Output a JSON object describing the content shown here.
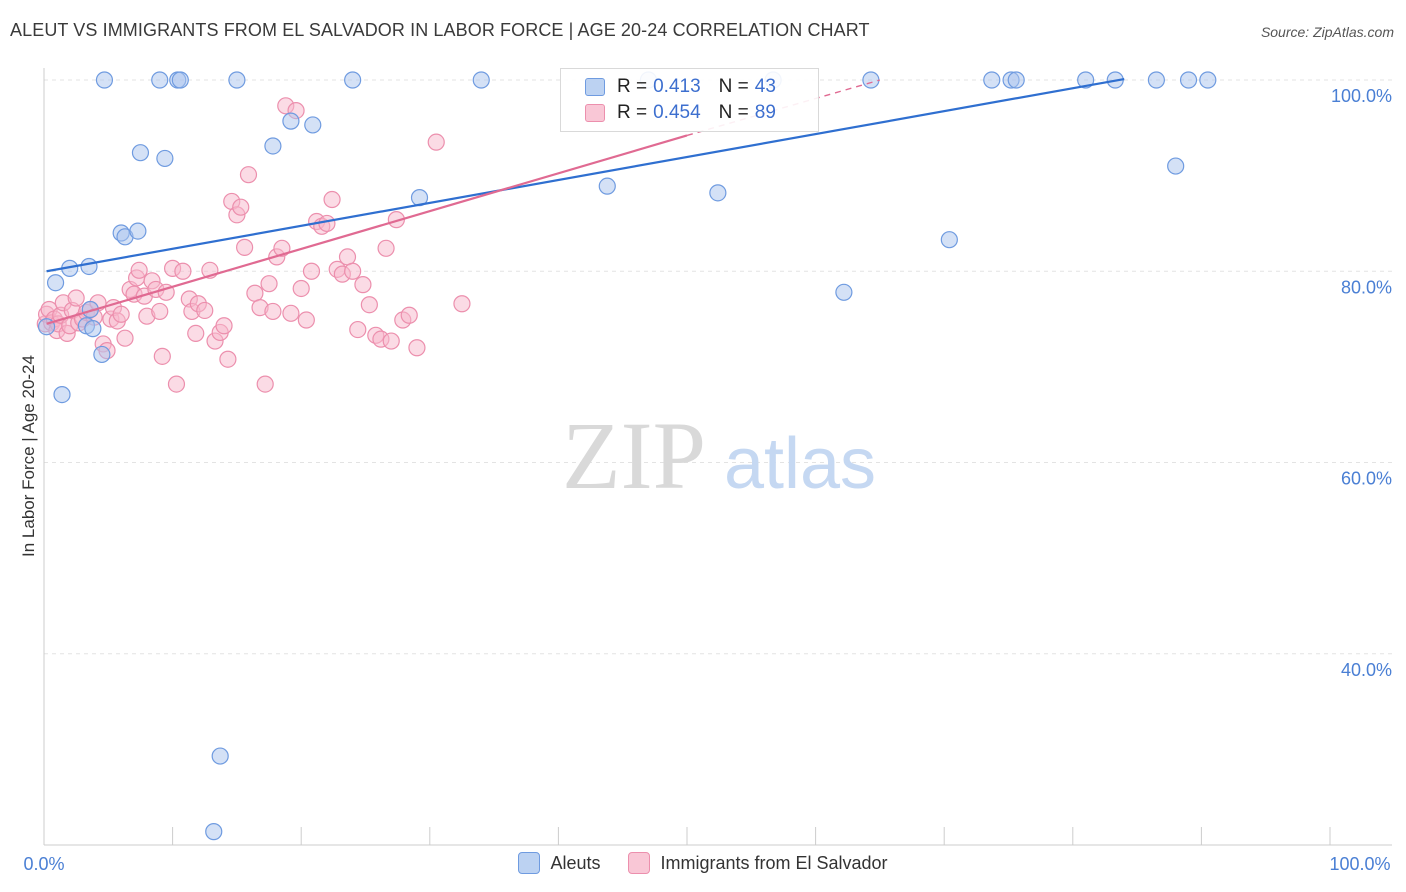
{
  "title": "ALEUT VS IMMIGRANTS FROM EL SALVADOR IN LABOR FORCE | AGE 20-24 CORRELATION CHART",
  "source": "Source: ZipAtlas.com",
  "watermark": {
    "zip": "ZIP",
    "atlas": "atlas"
  },
  "legend": {
    "rows": [
      {
        "r_label": "R = ",
        "r_value": "0.413",
        "n_label": "N = ",
        "n_value": "43"
      },
      {
        "r_label": "R = ",
        "r_value": "0.454",
        "n_label": "N = ",
        "n_value": "89"
      }
    ]
  },
  "colors": {
    "aleuts_fill": "#a9c4ee",
    "aleuts_stroke": "#6f9be0",
    "aleuts_line": "#2f6fd0",
    "salvador_fill": "#f7b8cb",
    "salvador_stroke": "#ec8fad",
    "salvador_line": "#e06a92",
    "tick_text": "#4a7fd4",
    "grid": "#e3e3e3"
  },
  "chart_data": {
    "type": "scatter",
    "xlabel": "",
    "ylabel": "In Labor Force | Age 20-24",
    "xlim": [
      0,
      100
    ],
    "ylim": [
      20,
      100
    ],
    "x_tick_labels": [
      "0.0%",
      "100.0%"
    ],
    "y_ticks": [
      40,
      60,
      80,
      100
    ],
    "y_tick_labels": [
      "40.0%",
      "60.0%",
      "80.0%",
      "100.0%"
    ],
    "grid": true,
    "legend_position": "top-center",
    "series": [
      {
        "name": "Aleuts",
        "r": 0.413,
        "n": 43,
        "trend": [
          [
            0.2,
            80.0
          ],
          [
            84,
            100.1
          ]
        ],
        "points": [
          [
            0.2,
            74.2
          ],
          [
            0.9,
            78.8
          ],
          [
            1.4,
            67.1
          ],
          [
            2.0,
            80.3
          ],
          [
            3.3,
            74.3
          ],
          [
            3.6,
            76.0
          ],
          [
            3.5,
            80.5
          ],
          [
            3.8,
            74.0
          ],
          [
            4.5,
            71.3
          ],
          [
            4.7,
            100.0
          ],
          [
            6.0,
            84.0
          ],
          [
            6.3,
            83.6
          ],
          [
            7.3,
            84.2
          ],
          [
            7.5,
            92.4
          ],
          [
            9.0,
            100.0
          ],
          [
            9.4,
            91.8
          ],
          [
            10.4,
            100.0
          ],
          [
            10.6,
            100.0
          ],
          [
            13.7,
            29.3
          ],
          [
            13.2,
            21.4
          ],
          [
            15.0,
            100.0
          ],
          [
            17.8,
            93.1
          ],
          [
            19.2,
            95.7
          ],
          [
            20.9,
            95.3
          ],
          [
            24.0,
            100.0
          ],
          [
            29.2,
            87.7
          ],
          [
            34.0,
            100.0
          ],
          [
            43.8,
            88.9
          ],
          [
            47.0,
            100.0
          ],
          [
            52.4,
            88.2
          ],
          [
            56.7,
            100.0
          ],
          [
            62.2,
            77.8
          ],
          [
            64.3,
            100.0
          ],
          [
            70.4,
            83.3
          ],
          [
            73.7,
            100.0
          ],
          [
            75.2,
            100.0
          ],
          [
            75.6,
            100.0
          ],
          [
            81.0,
            100.0
          ],
          [
            83.3,
            100.0
          ],
          [
            86.5,
            100.0
          ],
          [
            88.0,
            91.0
          ],
          [
            89.0,
            100.0
          ],
          [
            90.5,
            100.0
          ]
        ]
      },
      {
        "name": "Immigrants from El Salvador",
        "r": 0.454,
        "n": 89,
        "trend": [
          [
            0.2,
            74.5
          ],
          [
            50,
            94.2
          ]
        ],
        "trend_extension": [
          [
            50,
            94.2
          ],
          [
            65,
            100.0
          ]
        ],
        "points": [
          [
            0.1,
            74.5
          ],
          [
            0.2,
            75.5
          ],
          [
            0.4,
            76.0
          ],
          [
            0.6,
            74.6
          ],
          [
            0.8,
            75.0
          ],
          [
            1.0,
            73.8
          ],
          [
            1.1,
            74.5
          ],
          [
            1.3,
            75.4
          ],
          [
            1.5,
            76.7
          ],
          [
            1.8,
            73.5
          ],
          [
            2.0,
            74.3
          ],
          [
            2.2,
            75.9
          ],
          [
            2.5,
            77.2
          ],
          [
            2.7,
            74.6
          ],
          [
            3.0,
            75.0
          ],
          [
            3.3,
            75.7
          ],
          [
            3.6,
            76.0
          ],
          [
            3.9,
            75.2
          ],
          [
            4.2,
            76.7
          ],
          [
            4.6,
            72.4
          ],
          [
            4.9,
            71.7
          ],
          [
            5.2,
            75.0
          ],
          [
            5.4,
            76.2
          ],
          [
            5.7,
            74.8
          ],
          [
            6.0,
            75.5
          ],
          [
            6.3,
            73.0
          ],
          [
            6.7,
            78.1
          ],
          [
            7.0,
            77.6
          ],
          [
            7.2,
            79.3
          ],
          [
            7.4,
            80.1
          ],
          [
            7.8,
            77.4
          ],
          [
            8.0,
            75.3
          ],
          [
            8.4,
            79.0
          ],
          [
            8.7,
            78.1
          ],
          [
            9.0,
            75.8
          ],
          [
            9.2,
            71.1
          ],
          [
            9.5,
            77.8
          ],
          [
            10.0,
            80.3
          ],
          [
            10.3,
            68.2
          ],
          [
            10.8,
            80.0
          ],
          [
            11.3,
            77.1
          ],
          [
            11.5,
            75.8
          ],
          [
            11.8,
            73.5
          ],
          [
            12.0,
            76.6
          ],
          [
            12.5,
            75.9
          ],
          [
            12.9,
            80.1
          ],
          [
            13.3,
            72.7
          ],
          [
            13.7,
            73.6
          ],
          [
            14.0,
            74.3
          ],
          [
            14.3,
            70.8
          ],
          [
            14.6,
            87.3
          ],
          [
            15.0,
            85.9
          ],
          [
            15.3,
            86.7
          ],
          [
            15.6,
            82.5
          ],
          [
            15.9,
            90.1
          ],
          [
            16.4,
            77.7
          ],
          [
            16.8,
            76.2
          ],
          [
            17.2,
            68.2
          ],
          [
            17.5,
            78.7
          ],
          [
            17.8,
            75.8
          ],
          [
            18.1,
            81.5
          ],
          [
            18.5,
            82.4
          ],
          [
            18.8,
            97.3
          ],
          [
            19.2,
            75.6
          ],
          [
            19.6,
            96.8
          ],
          [
            20.0,
            78.2
          ],
          [
            20.4,
            74.9
          ],
          [
            20.8,
            80.0
          ],
          [
            21.2,
            85.2
          ],
          [
            21.6,
            84.7
          ],
          [
            22.0,
            85.0
          ],
          [
            22.4,
            87.5
          ],
          [
            22.8,
            80.2
          ],
          [
            23.2,
            79.7
          ],
          [
            23.6,
            81.5
          ],
          [
            24.0,
            80.0
          ],
          [
            24.4,
            73.9
          ],
          [
            24.8,
            78.6
          ],
          [
            25.3,
            76.5
          ],
          [
            25.8,
            73.3
          ],
          [
            26.2,
            72.9
          ],
          [
            26.6,
            82.4
          ],
          [
            27.0,
            72.7
          ],
          [
            27.4,
            85.4
          ],
          [
            27.9,
            74.9
          ],
          [
            28.4,
            75.4
          ],
          [
            29.0,
            72.0
          ],
          [
            30.5,
            93.5
          ],
          [
            32.5,
            76.6
          ]
        ]
      }
    ]
  },
  "bottom_legend": [
    {
      "label": "Aleuts"
    },
    {
      "label": "Immigrants from El Salvador"
    }
  ]
}
